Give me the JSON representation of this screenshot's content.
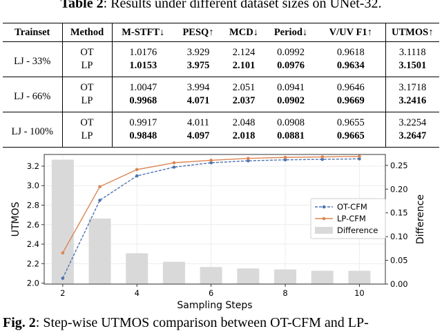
{
  "table_caption": {
    "label": "Table 2",
    "text": ": Results under different dataset sizes on UNet-32."
  },
  "table": {
    "headers": [
      "Trainset",
      "Method",
      "M-STFT↓",
      "PESQ↑",
      "MCD↓",
      "Period↓",
      "V/UV F1↑",
      "UTMOS↑"
    ],
    "groups": [
      {
        "trainset": "LJ - 33%",
        "rows": [
          {
            "method": "OT",
            "values": [
              "1.0176",
              "3.929",
              "2.124",
              "0.0992",
              "0.9618",
              "3.1118"
            ]
          },
          {
            "method": "LP",
            "values": [
              "1.0153",
              "3.975",
              "2.101",
              "0.0976",
              "0.9634",
              "3.1501"
            ]
          }
        ]
      },
      {
        "trainset": "LJ - 66%",
        "rows": [
          {
            "method": "OT",
            "values": [
              "1.0047",
              "3.994",
              "2.051",
              "0.0941",
              "0.9646",
              "3.1718"
            ]
          },
          {
            "method": "LP",
            "values": [
              "0.9968",
              "4.071",
              "2.037",
              "0.0902",
              "0.9669",
              "3.2416"
            ]
          }
        ]
      },
      {
        "trainset": "LJ - 100%",
        "rows": [
          {
            "method": "OT",
            "values": [
              "0.9917",
              "4.011",
              "2.048",
              "0.0908",
              "0.9655",
              "3.2254"
            ]
          },
          {
            "method": "LP",
            "values": [
              "0.9848",
              "4.097",
              "2.018",
              "0.0881",
              "0.9665",
              "3.2647"
            ]
          }
        ]
      }
    ]
  },
  "chart_data": {
    "type": "line",
    "x": [
      2,
      3,
      4,
      5,
      6,
      7,
      8,
      9,
      10
    ],
    "xlabel": "Sampling Steps",
    "ylabel": "UTMOS",
    "y2label": "Difference",
    "xticks": [
      "2",
      "4",
      "6",
      "8",
      "10"
    ],
    "yticks": [
      "2.0",
      "2.2",
      "2.4",
      "2.6",
      "2.8",
      "3.0",
      "3.2"
    ],
    "y2ticks": [
      "0.00",
      "0.05",
      "0.10",
      "0.15",
      "0.20",
      "0.25"
    ],
    "xlim": [
      1.5,
      10.7
    ],
    "ylim": [
      1.99,
      3.32
    ],
    "y2lim": [
      0,
      0.273
    ],
    "grid": true,
    "legend_position": "center-right",
    "series": [
      {
        "name": "OT-CFM",
        "values": [
          2.05,
          2.85,
          3.1,
          3.19,
          3.235,
          3.255,
          3.265,
          3.27,
          3.275
        ],
        "color": "#4c72b0"
      },
      {
        "name": "LP-CFM",
        "values": [
          2.31,
          2.99,
          3.165,
          3.235,
          3.26,
          3.28,
          3.29,
          3.295,
          3.3
        ],
        "color": "#dd8452"
      }
    ],
    "bars": {
      "name": "Difference",
      "values": [
        0.262,
        0.138,
        0.065,
        0.047,
        0.036,
        0.033,
        0.031,
        0.028,
        0.028
      ],
      "color": "#d9d9d9"
    }
  },
  "fig_caption": {
    "label": "Fig. 2",
    "text": ":  Step-wise UTMOS comparison between OT-CFM and LP-"
  }
}
